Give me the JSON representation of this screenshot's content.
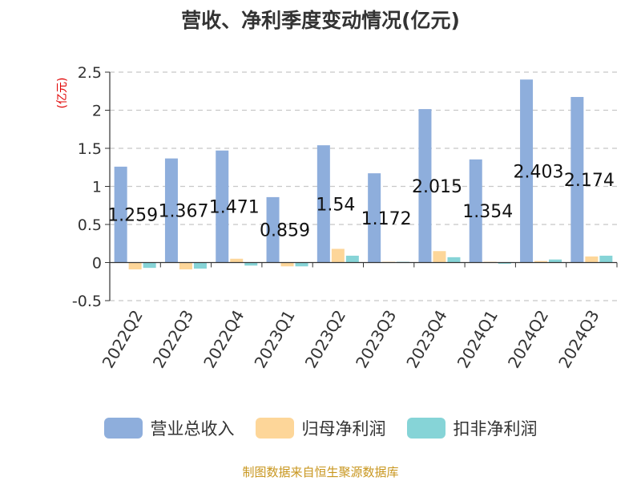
{
  "chart_data": {
    "type": "bar",
    "title": "营收、净利季度变动情况(亿元)",
    "ylabel": "(亿元)",
    "xlabel": "",
    "ylim": [
      -0.5,
      2.5
    ],
    "yticks": [
      -0.5,
      0,
      0.5,
      1,
      1.5,
      2,
      2.5
    ],
    "ytick_labels": [
      "-0.5",
      "0",
      "0.5",
      "1",
      "1.5",
      "2",
      "2.5"
    ],
    "grid": true,
    "legend_position": "bottom",
    "categories": [
      "2022Q2",
      "2022Q3",
      "2022Q4",
      "2023Q1",
      "2023Q2",
      "2023Q3",
      "2023Q4",
      "2024Q1",
      "2024Q2",
      "2024Q3"
    ],
    "series": [
      {
        "name": "营业总收入",
        "color": "#8eaedc",
        "values": [
          1.259,
          1.367,
          1.471,
          0.859,
          1.54,
          1.172,
          2.015,
          1.354,
          2.403,
          2.174
        ],
        "data_labels": [
          "1.259",
          "1.367",
          "1.471",
          "0.859",
          "1.54",
          "1.172",
          "2.015",
          "1.354",
          "2.403",
          "2.174"
        ]
      },
      {
        "name": "归母净利润",
        "color": "#fdd699",
        "values": [
          -0.09,
          -0.09,
          0.05,
          -0.05,
          0.18,
          0.01,
          0.15,
          0.01,
          0.02,
          0.08
        ]
      },
      {
        "name": "扣非净利润",
        "color": "#86d4d7",
        "values": [
          -0.07,
          -0.08,
          -0.04,
          -0.05,
          0.09,
          0.01,
          0.07,
          0.0,
          0.04,
          0.09
        ]
      }
    ]
  },
  "source": "制图数据来自恒生聚源数据库"
}
